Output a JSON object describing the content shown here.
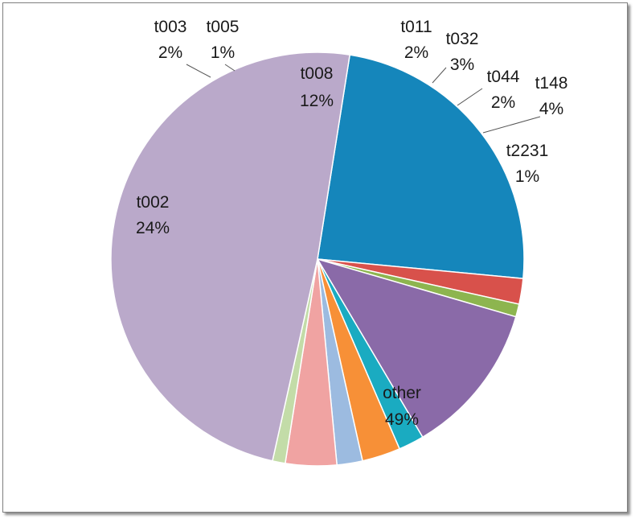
{
  "chart_data": {
    "type": "pie",
    "start_angle_deg": 81,
    "direction": "clockwise",
    "colors": {
      "t002": "#1586bb",
      "t003": "#d8514b",
      "t005": "#8db54f",
      "t008": "#8a6aa8",
      "t011": "#1aabc1",
      "t032": "#f79037",
      "t044": "#9cbbe0",
      "t148": "#f0a3a2",
      "t2231": "#c3dca8",
      "other": "#baa9ca"
    },
    "slices": [
      {
        "label": "t002",
        "value": 24,
        "pct_label": "24%"
      },
      {
        "label": "t003",
        "value": 2,
        "pct_label": "2%"
      },
      {
        "label": "t005",
        "value": 1,
        "pct_label": "1%"
      },
      {
        "label": "t008",
        "value": 12,
        "pct_label": "12%"
      },
      {
        "label": "t011",
        "value": 2,
        "pct_label": "2%"
      },
      {
        "label": "t032",
        "value": 3,
        "pct_label": "3%"
      },
      {
        "label": "t044",
        "value": 2,
        "pct_label": "2%"
      },
      {
        "label": "t148",
        "value": 4,
        "pct_label": "4%"
      },
      {
        "label": "t2231",
        "value": 1,
        "pct_label": "1%"
      },
      {
        "label": "other",
        "value": 49,
        "pct_label": "49%"
      }
    ]
  }
}
